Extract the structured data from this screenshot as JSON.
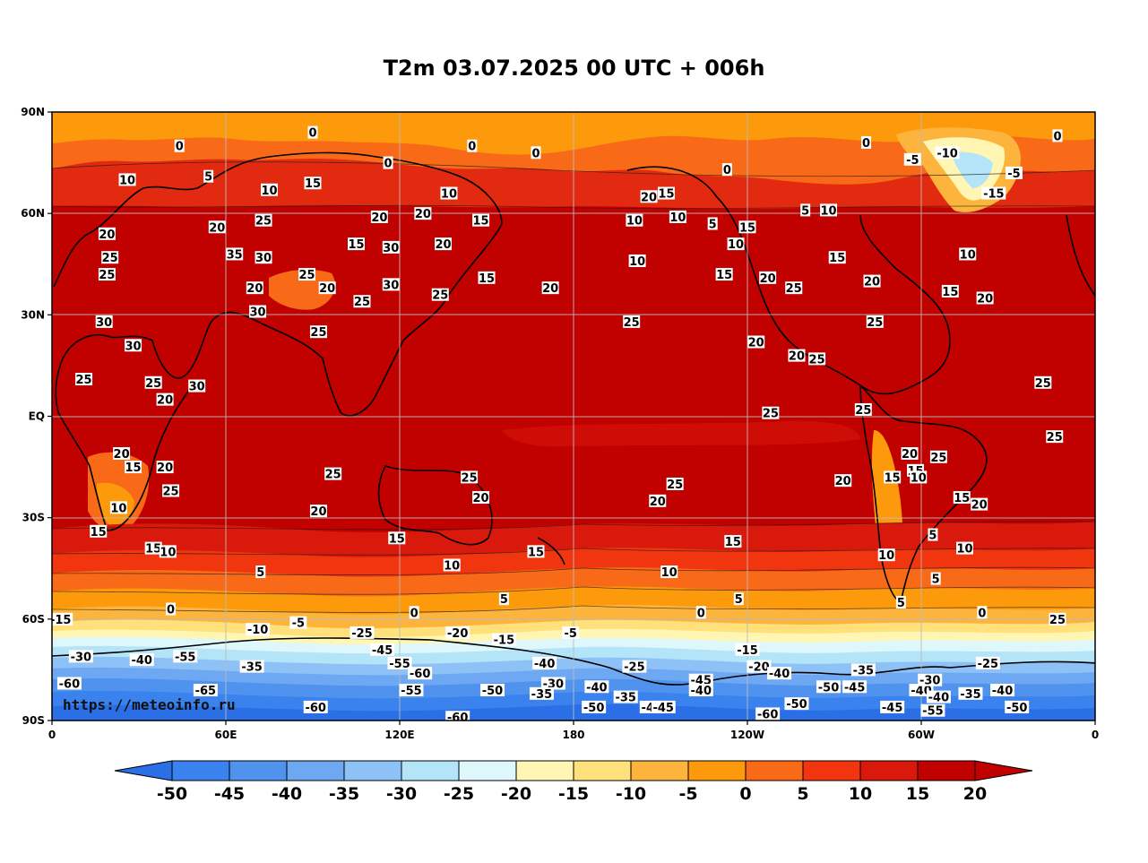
{
  "title": "T2m 03.07.2025 00 UTC + 006h",
  "watermark": "https://meteoinfo.ru",
  "lat_labels": [
    "90N",
    "60N",
    "30N",
    "EQ",
    "30S",
    "60S",
    "90S"
  ],
  "lon_labels": [
    "0",
    "60E",
    "120E",
    "180",
    "120W",
    "60W",
    "0"
  ],
  "colorbar": {
    "levels": [
      "-50",
      "-45",
      "-40",
      "-35",
      "-30",
      "-25",
      "-20",
      "-15",
      "-10",
      "-5",
      "0",
      "5",
      "10",
      "15",
      "20"
    ],
    "colors": [
      "#2a6fe6",
      "#3a82ee",
      "#4f93ef",
      "#6ea8f2",
      "#8ec1f6",
      "#b3e4f8",
      "#def7fb",
      "#fff6b3",
      "#ffe07a",
      "#fdb43c",
      "#fd9a0c",
      "#f86a18",
      "#f0350f",
      "#d8190b",
      "#c10000"
    ]
  },
  "contour_labels": [
    {
      "text": "0",
      "lon": 44,
      "lat": 80
    },
    {
      "text": "0",
      "lon": 90,
      "lat": 84
    },
    {
      "text": "0",
      "lon": 145,
      "lat": 80
    },
    {
      "text": "0",
      "lon": 116,
      "lat": 75
    },
    {
      "text": "0",
      "lon": 167,
      "lat": 78
    },
    {
      "text": "0",
      "lon": 233,
      "lat": 73
    },
    {
      "text": "0",
      "lon": 281,
      "lat": 81
    },
    {
      "text": "0",
      "lon": 347,
      "lat": 83
    },
    {
      "text": "-10",
      "lon": 309,
      "lat": 78
    },
    {
      "text": "-5",
      "lon": 332,
      "lat": 72
    },
    {
      "text": "-15",
      "lon": 325,
      "lat": 66
    },
    {
      "text": "-5",
      "lon": 297,
      "lat": 76
    },
    {
      "text": "10",
      "lon": 26,
      "lat": 70
    },
    {
      "text": "5",
      "lon": 54,
      "lat": 71
    },
    {
      "text": "10",
      "lon": 75,
      "lat": 67
    },
    {
      "text": "15",
      "lon": 90,
      "lat": 69
    },
    {
      "text": "10",
      "lon": 137,
      "lat": 66
    },
    {
      "text": "20",
      "lon": 128,
      "lat": 60
    },
    {
      "text": "15",
      "lon": 148,
      "lat": 58
    },
    {
      "text": "10",
      "lon": 201,
      "lat": 58
    },
    {
      "text": "20",
      "lon": 206,
      "lat": 65
    },
    {
      "text": "15",
      "lon": 212,
      "lat": 66
    },
    {
      "text": "10",
      "lon": 216,
      "lat": 59
    },
    {
      "text": "5",
      "lon": 228,
      "lat": 57
    },
    {
      "text": "15",
      "lon": 240,
      "lat": 56
    },
    {
      "text": "10",
      "lon": 236,
      "lat": 51
    },
    {
      "text": "5",
      "lon": 260,
      "lat": 61
    },
    {
      "text": "10",
      "lon": 268,
      "lat": 61
    },
    {
      "text": "10",
      "lon": 316,
      "lat": 48
    },
    {
      "text": "15",
      "lon": 271,
      "lat": 47
    },
    {
      "text": "20",
      "lon": 247,
      "lat": 41
    },
    {
      "text": "25",
      "lon": 256,
      "lat": 38
    },
    {
      "text": "20",
      "lon": 283,
      "lat": 40
    },
    {
      "text": "15",
      "lon": 310,
      "lat": 37
    },
    {
      "text": "20",
      "lon": 322,
      "lat": 35
    },
    {
      "text": "25",
      "lon": 284,
      "lat": 28
    },
    {
      "text": "20",
      "lon": 19,
      "lat": 54
    },
    {
      "text": "25",
      "lon": 20,
      "lat": 47
    },
    {
      "text": "25",
      "lon": 19,
      "lat": 42
    },
    {
      "text": "20",
      "lon": 57,
      "lat": 56
    },
    {
      "text": "25",
      "lon": 73,
      "lat": 58
    },
    {
      "text": "35",
      "lon": 63,
      "lat": 48
    },
    {
      "text": "30",
      "lon": 73,
      "lat": 47
    },
    {
      "text": "20",
      "lon": 70,
      "lat": 38
    },
    {
      "text": "30",
      "lon": 71,
      "lat": 31
    },
    {
      "text": "25",
      "lon": 88,
      "lat": 42
    },
    {
      "text": "20",
      "lon": 95,
      "lat": 38
    },
    {
      "text": "25",
      "lon": 107,
      "lat": 34
    },
    {
      "text": "25",
      "lon": 92,
      "lat": 25
    },
    {
      "text": "15",
      "lon": 105,
      "lat": 51
    },
    {
      "text": "30",
      "lon": 117,
      "lat": 50
    },
    {
      "text": "20",
      "lon": 113,
      "lat": 59
    },
    {
      "text": "20",
      "lon": 135,
      "lat": 51
    },
    {
      "text": "25",
      "lon": 134,
      "lat": 36
    },
    {
      "text": "30",
      "lon": 117,
      "lat": 39
    },
    {
      "text": "15",
      "lon": 150,
      "lat": 41
    },
    {
      "text": "20",
      "lon": 172,
      "lat": 38
    },
    {
      "text": "10",
      "lon": 202,
      "lat": 46
    },
    {
      "text": "15",
      "lon": 232,
      "lat": 42
    },
    {
      "text": "25",
      "lon": 200,
      "lat": 28
    },
    {
      "text": "20",
      "lon": 243,
      "lat": 22
    },
    {
      "text": "20",
      "lon": 257,
      "lat": 18
    },
    {
      "text": "25",
      "lon": 264,
      "lat": 17
    },
    {
      "text": "25",
      "lon": 280,
      "lat": 2
    },
    {
      "text": "25",
      "lon": 342,
      "lat": 10
    },
    {
      "text": "25",
      "lon": 248,
      "lat": 1
    },
    {
      "text": "25",
      "lon": 346,
      "lat": -6
    },
    {
      "text": "30",
      "lon": 28,
      "lat": 21
    },
    {
      "text": "30",
      "lon": 18,
      "lat": 28
    },
    {
      "text": "25",
      "lon": 11,
      "lat": 11
    },
    {
      "text": "25",
      "lon": 35,
      "lat": 10
    },
    {
      "text": "20",
      "lon": 39,
      "lat": 5
    },
    {
      "text": "30",
      "lon": 50,
      "lat": 9
    },
    {
      "text": "20",
      "lon": 24,
      "lat": -11
    },
    {
      "text": "15",
      "lon": 28,
      "lat": -15
    },
    {
      "text": "20",
      "lon": 39,
      "lat": -15
    },
    {
      "text": "25",
      "lon": 41,
      "lat": -22
    },
    {
      "text": "10",
      "lon": 23,
      "lat": -27
    },
    {
      "text": "15",
      "lon": 16,
      "lat": -34
    },
    {
      "text": "25",
      "lon": 97,
      "lat": -17
    },
    {
      "text": "20",
      "lon": 92,
      "lat": -28
    },
    {
      "text": "25",
      "lon": 144,
      "lat": -18
    },
    {
      "text": "20",
      "lon": 148,
      "lat": -24
    },
    {
      "text": "15",
      "lon": 119,
      "lat": -36
    },
    {
      "text": "10",
      "lon": 138,
      "lat": -44
    },
    {
      "text": "15",
      "lon": 167,
      "lat": -40
    },
    {
      "text": "25",
      "lon": 215,
      "lat": -20
    },
    {
      "text": "20",
      "lon": 209,
      "lat": -25
    },
    {
      "text": "10",
      "lon": 213,
      "lat": -46
    },
    {
      "text": "15",
      "lon": 235,
      "lat": -37
    },
    {
      "text": "20",
      "lon": 273,
      "lat": -19
    },
    {
      "text": "20",
      "lon": 296,
      "lat": -11
    },
    {
      "text": "15",
      "lon": 298,
      "lat": -16
    },
    {
      "text": "10",
      "lon": 299,
      "lat": -18
    },
    {
      "text": "25",
      "lon": 306,
      "lat": -12
    },
    {
      "text": "15",
      "lon": 314,
      "lat": -24
    },
    {
      "text": "20",
      "lon": 320,
      "lat": -26
    },
    {
      "text": "15",
      "lon": 290,
      "lat": -18
    },
    {
      "text": "10",
      "lon": 288,
      "lat": -41
    },
    {
      "text": "5",
      "lon": 304,
      "lat": -35
    },
    {
      "text": "10",
      "lon": 315,
      "lat": -39
    },
    {
      "text": "5",
      "lon": 305,
      "lat": -48
    },
    {
      "text": "5",
      "lon": 293,
      "lat": -55
    },
    {
      "text": "15",
      "lon": 35,
      "lat": -39
    },
    {
      "text": "10",
      "lon": 40,
      "lat": -40
    },
    {
      "text": "5",
      "lon": 72,
      "lat": -46
    },
    {
      "text": "5",
      "lon": 156,
      "lat": -54
    },
    {
      "text": "5",
      "lon": 237,
      "lat": -54
    },
    {
      "text": "0",
      "lon": 41,
      "lat": -57
    },
    {
      "text": "0",
      "lon": 125,
      "lat": -58
    },
    {
      "text": "0",
      "lon": 224,
      "lat": -58
    },
    {
      "text": "0",
      "lon": 321,
      "lat": -58
    },
    {
      "text": "-15",
      "lon": 3,
      "lat": -60
    },
    {
      "text": "-5",
      "lon": 85,
      "lat": -61
    },
    {
      "text": "-10",
      "lon": 71,
      "lat": -63
    },
    {
      "text": "-25",
      "lon": 107,
      "lat": -64
    },
    {
      "text": "-20",
      "lon": 140,
      "lat": -64
    },
    {
      "text": "-15",
      "lon": 156,
      "lat": -66
    },
    {
      "text": "-5",
      "lon": 179,
      "lat": -64
    },
    {
      "text": "-15",
      "lon": 240,
      "lat": -69
    },
    {
      "text": "-25",
      "lon": 323,
      "lat": -73
    },
    {
      "text": "25",
      "lon": 347,
      "lat": -60
    },
    {
      "text": "-30",
      "lon": 10,
      "lat": -71
    },
    {
      "text": "-40",
      "lon": 31,
      "lat": -72
    },
    {
      "text": "-55",
      "lon": 46,
      "lat": -71
    },
    {
      "text": "-35",
      "lon": 69,
      "lat": -74
    },
    {
      "text": "-45",
      "lon": 114,
      "lat": -69
    },
    {
      "text": "-55",
      "lon": 120,
      "lat": -73
    },
    {
      "text": "-60",
      "lon": 127,
      "lat": -76
    },
    {
      "text": "-40",
      "lon": 170,
      "lat": -73
    },
    {
      "text": "-30",
      "lon": 173,
      "lat": -79
    },
    {
      "text": "-40",
      "lon": 188,
      "lat": -80
    },
    {
      "text": "-25",
      "lon": 201,
      "lat": -74
    },
    {
      "text": "-45",
      "lon": 224,
      "lat": -78
    },
    {
      "text": "-40",
      "lon": 224,
      "lat": -81
    },
    {
      "text": "-20",
      "lon": 244,
      "lat": -74
    },
    {
      "text": "-40",
      "lon": 251,
      "lat": -76
    },
    {
      "text": "-35",
      "lon": 280,
      "lat": -75
    },
    {
      "text": "-50",
      "lon": 268,
      "lat": -80
    },
    {
      "text": "-45",
      "lon": 277,
      "lat": -80
    },
    {
      "text": "-40",
      "lon": 300,
      "lat": -81
    },
    {
      "text": "-30",
      "lon": 303,
      "lat": -78
    },
    {
      "text": "-40",
      "lon": 306,
      "lat": -83
    },
    {
      "text": "-35",
      "lon": 317,
      "lat": -82
    },
    {
      "text": "-40",
      "lon": 328,
      "lat": -81
    },
    {
      "text": "-60",
      "lon": 6,
      "lat": -79
    },
    {
      "text": "-65",
      "lon": 53,
      "lat": -81
    },
    {
      "text": "-60",
      "lon": 91,
      "lat": -86
    },
    {
      "text": "-55",
      "lon": 124,
      "lat": -81
    },
    {
      "text": "-50",
      "lon": 152,
      "lat": -81
    },
    {
      "text": "-35",
      "lon": 169,
      "lat": -82
    },
    {
      "text": "-50",
      "lon": 187,
      "lat": -86
    },
    {
      "text": "-35",
      "lon": 198,
      "lat": -83
    },
    {
      "text": "-40",
      "lon": 207,
      "lat": -86
    },
    {
      "text": "-45",
      "lon": 211,
      "lat": -86
    },
    {
      "text": "-50",
      "lon": 257,
      "lat": -85
    },
    {
      "text": "-45",
      "lon": 290,
      "lat": -86
    },
    {
      "text": "-55",
      "lon": 304,
      "lat": -87
    },
    {
      "text": "-50",
      "lon": 333,
      "lat": -86
    },
    {
      "text": "-60",
      "lon": 140,
      "lat": -89
    },
    {
      "text": "-60",
      "lon": 247,
      "lat": -88
    }
  ]
}
